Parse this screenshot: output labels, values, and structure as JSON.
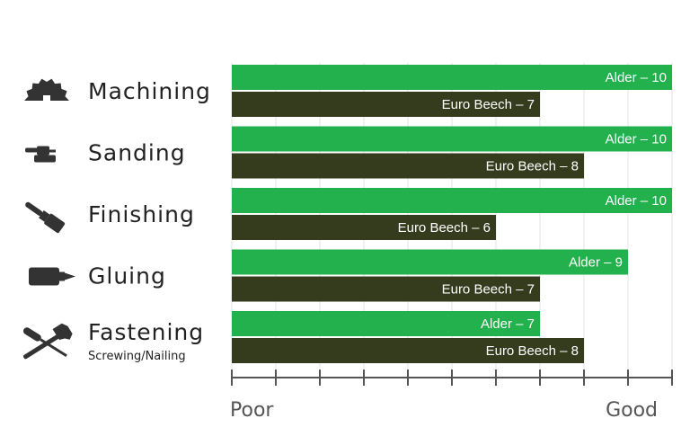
{
  "colors": {
    "alder": "#22b14c",
    "beech": "#353b1d",
    "grid": "#e3e3e3",
    "axis": "#555555",
    "icon": "#333333"
  },
  "chart_data": {
    "type": "bar",
    "orientation": "horizontal",
    "categories": [
      {
        "name": "Machining",
        "sub": "",
        "icon": "saw-blade-icon"
      },
      {
        "name": "Sanding",
        "sub": "",
        "icon": "sander-icon"
      },
      {
        "name": "Finishing",
        "sub": "",
        "icon": "paintbrush-icon"
      },
      {
        "name": "Gluing",
        "sub": "",
        "icon": "glue-bottle-icon"
      },
      {
        "name": "Fastening",
        "sub": "Screwing/Nailing",
        "icon": "screwdriver-hammer-icon"
      }
    ],
    "series": [
      {
        "key": "alder",
        "values": [
          10,
          10,
          10,
          9,
          7
        ],
        "labels": [
          "Alder – 10",
          "Alder – 10",
          "Alder – 10",
          "Alder – 9",
          "Alder – 7"
        ]
      },
      {
        "key": "beech",
        "values": [
          7,
          8,
          6,
          7,
          8
        ],
        "labels": [
          "Euro Beech – 7",
          "Euro Beech – 8",
          "Euro Beech – 6",
          "Euro Beech – 7",
          "Euro Beech – 8"
        ]
      }
    ],
    "xlim": [
      0,
      10
    ],
    "grid": true,
    "axis_min_label": "Poor",
    "axis_max_label": "Good"
  }
}
